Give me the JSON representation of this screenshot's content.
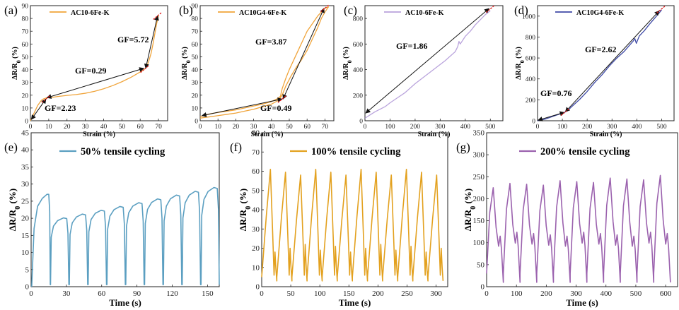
{
  "chart_data": [
    {
      "id": "a",
      "panel_label": "(a)",
      "type": "line",
      "color": "#f0a43a",
      "legend": "AC10-6Fe-K",
      "xlabel": "Strain (%)",
      "ylabel": "ΔR/R",
      "ylabel_sub": "0",
      "ylabel_unit": " (%)",
      "xlim": [
        0,
        75
      ],
      "ylim": [
        0,
        90
      ],
      "xticks": [
        0,
        10,
        20,
        30,
        40,
        50,
        60,
        70
      ],
      "yticks": [
        0,
        10,
        20,
        30,
        40,
        50,
        60,
        70,
        80,
        90
      ],
      "series": [
        {
          "name": "AC10-6Fe-K",
          "x": [
            0,
            1,
            2,
            3,
            4,
            5,
            6,
            7,
            8,
            9,
            10,
            12,
            15,
            20,
            25,
            30,
            35,
            40,
            45,
            50,
            55,
            58,
            61,
            63,
            64,
            65,
            66,
            67,
            68,
            69,
            70
          ],
          "y": [
            0,
            3,
            6,
            9,
            12,
            14,
            16,
            17,
            17.5,
            18,
            18,
            18.3,
            19,
            19.8,
            20.5,
            21.5,
            23,
            25,
            27.5,
            30.5,
            34,
            36.5,
            39,
            41,
            44,
            48,
            53,
            60,
            68,
            76,
            82
          ]
        }
      ],
      "annotations": [
        {
          "text": "GF=2.23",
          "x1": 0.5,
          "y1": 1,
          "x2": 8.5,
          "y2": 17
        },
        {
          "text": "GF=0.29",
          "x1": 9,
          "y1": 18,
          "x2": 62,
          "y2": 41
        },
        {
          "text": "GF=5.72",
          "x1": 63,
          "y1": 41,
          "x2": 69.5,
          "y2": 82
        }
      ],
      "markers": [
        [
          8.5,
          17
        ],
        [
          62.5,
          40.5
        ],
        [
          69.5,
          82
        ]
      ]
    },
    {
      "id": "b",
      "panel_label": "(b)",
      "type": "line",
      "color": "#f0a43a",
      "legend": "AC10G4-6Fe-K",
      "xlabel": "Strain (%)",
      "ylabel": "ΔR/R",
      "ylabel_sub": "0",
      "ylabel_unit": " (%)",
      "xlim": [
        0,
        75
      ],
      "ylim": [
        0,
        90
      ],
      "xticks": [
        0,
        10,
        20,
        30,
        40,
        50,
        60,
        70
      ],
      "yticks": [
        0,
        10,
        20,
        30,
        40,
        50,
        60,
        70,
        80,
        90
      ],
      "series": [
        {
          "name": "AC10G4-6Fe-K",
          "x": [
            0,
            3,
            6,
            10,
            15,
            20,
            25,
            30,
            35,
            40,
            43,
            45,
            46,
            48,
            50,
            52,
            54,
            56,
            58,
            60,
            62,
            64,
            66,
            68,
            70,
            72,
            70,
            68,
            66,
            64,
            62,
            60,
            57,
            54,
            51,
            48,
            46,
            44,
            40,
            35,
            30,
            25,
            20,
            15,
            10,
            5,
            2,
            0
          ],
          "y": [
            3,
            4.5,
            5.5,
            6.5,
            7.5,
            8.5,
            10,
            11.5,
            13,
            15,
            17,
            19,
            25,
            33,
            40,
            46,
            52,
            58,
            64,
            70,
            74,
            78,
            82,
            85,
            88,
            89,
            85,
            80,
            73,
            67,
            61,
            55,
            48,
            42,
            35,
            27,
            20,
            16,
            13,
            11,
            9,
            7.5,
            6,
            5,
            4,
            3,
            2.5,
            2
          ]
        }
      ],
      "annotations": [
        {
          "text": "GF=3.87",
          "x1": 46.5,
          "y1": 17,
          "x2": 69.5,
          "y2": 88
        },
        {
          "text": "GF=0.49",
          "x1": 1,
          "y1": 4,
          "x2": 46,
          "y2": 17
        }
      ],
      "markers": [
        [
          46,
          17
        ],
        [
          70,
          88
        ]
      ]
    },
    {
      "id": "c",
      "panel_label": "(c)",
      "type": "line",
      "color": "#b9a3dc",
      "legend": "AC10-6Fe-K",
      "xlabel": "Strain (%)",
      "ylabel": "ΔR/R",
      "ylabel_sub": "0",
      "ylabel_unit": " (%)",
      "xlim": [
        0,
        550
      ],
      "ylim": [
        0,
        900
      ],
      "xticks": [
        0,
        100,
        200,
        300,
        400,
        500
      ],
      "yticks": [
        0,
        200,
        400,
        600,
        800
      ],
      "series": [
        {
          "name": "AC10-6Fe-K",
          "x": [
            0,
            20,
            40,
            60,
            80,
            100,
            130,
            160,
            200,
            240,
            280,
            320,
            360,
            370,
            375,
            380,
            400,
            420,
            440,
            460,
            480,
            500
          ],
          "y": [
            20,
            45,
            70,
            90,
            110,
            140,
            180,
            220,
            290,
            350,
            410,
            470,
            540,
            580,
            620,
            600,
            660,
            700,
            750,
            790,
            830,
            860
          ]
        }
      ],
      "annotations": [
        {
          "text": "GF=1.86",
          "x1": 3,
          "y1": 60,
          "x2": 495,
          "y2": 878
        }
      ],
      "markers": [
        [
          500,
          875
        ]
      ]
    },
    {
      "id": "d",
      "panel_label": "(d)",
      "type": "line",
      "color": "#3f4aa6",
      "legend": "AC10G4-6Fe-K",
      "xlabel": "Strain (%)",
      "ylabel": "ΔR/R",
      "ylabel_sub": "0",
      "ylabel_unit": " (%)",
      "xlim": [
        0,
        550
      ],
      "ylim": [
        0,
        1100
      ],
      "xticks": [
        0,
        100,
        200,
        300,
        400,
        500
      ],
      "yticks": [
        0,
        200,
        400,
        600,
        800,
        1000
      ],
      "series": [
        {
          "name": "AC10G4-6Fe-K",
          "x": [
            0,
            30,
            60,
            90,
            110,
            120,
            140,
            170,
            200,
            230,
            260,
            290,
            320,
            350,
            370,
            385,
            392,
            398,
            410,
            430,
            450,
            470,
            490,
            500
          ],
          "y": [
            0,
            15,
            40,
            65,
            82,
            95,
            140,
            205,
            280,
            365,
            440,
            525,
            600,
            665,
            720,
            760,
            785,
            740,
            810,
            860,
            920,
            975,
            1030,
            1060
          ]
        }
      ],
      "annotations": [
        {
          "text": "GF=0.76",
          "x1": 2,
          "y1": 5,
          "x2": 108,
          "y2": 80
        },
        {
          "text": "GF=2.62",
          "x1": 112,
          "y1": 85,
          "x2": 490,
          "y2": 1050
        }
      ],
      "markers": [
        [
          112,
          85
        ],
        [
          498,
          1065
        ]
      ]
    },
    {
      "id": "e",
      "panel_label": "(e)",
      "type": "line",
      "color": "#5b9fc1",
      "legend": "50%  tensile cycling",
      "xlabel": "Time (s)",
      "ylabel": "ΔR/R",
      "ylabel_sub": "0",
      "ylabel_unit": " (%)",
      "xlim": [
        0,
        160
      ],
      "ylim": [
        0,
        45
      ],
      "xticks": [
        0,
        30,
        60,
        90,
        120,
        150
      ],
      "yticks": [
        0,
        5,
        10,
        15,
        20,
        25,
        30,
        35,
        40,
        45
      ],
      "cycle": {
        "count": 10,
        "period": 16,
        "start_peak": 19,
        "end_peak": 29,
        "valley": 0.5,
        "first_start": 0
      },
      "series": [
        {
          "name": "50%  tensile cycling",
          "x": [
            0,
            2,
            5,
            8,
            12,
            14,
            15,
            16
          ],
          "y": [
            0,
            18,
            24,
            26,
            27,
            27,
            20,
            0
          ]
        }
      ]
    },
    {
      "id": "f",
      "panel_label": "(f)",
      "type": "line",
      "color": "#e3a11f",
      "legend": "100%  tensile cycling",
      "xlabel": "Time (s)",
      "ylabel": "ΔR/R",
      "ylabel_sub": "0",
      "ylabel_unit": " (%)",
      "xlim": [
        0,
        320
      ],
      "ylim": [
        0,
        80
      ],
      "xticks": [
        0,
        50,
        100,
        150,
        200,
        250,
        300
      ],
      "yticks": [
        0,
        10,
        20,
        30,
        40,
        50,
        60,
        70,
        80
      ],
      "cycle": {
        "count": 12,
        "period": 26,
        "peak": 61,
        "mid_peak": 20,
        "valley": 3
      },
      "series": [
        {
          "name": "100%  tensile cycling",
          "x": [
            0,
            9,
            18,
            25,
            28,
            31,
            34
          ],
          "y": [
            5,
            33,
            59,
            22,
            6,
            18,
            3
          ]
        }
      ]
    },
    {
      "id": "g",
      "panel_label": "(g)",
      "type": "line",
      "color": "#9b62ae",
      "legend": "200%  tensile cycling",
      "xlabel": "Time (s)",
      "ylabel": "ΔR/R",
      "ylabel_sub": "0",
      "ylabel_unit": " (%)",
      "xlim": [
        0,
        640
      ],
      "ylim": [
        0,
        350
      ],
      "xticks": [
        0,
        100,
        200,
        300,
        400,
        500,
        600
      ],
      "yticks": [
        0,
        50,
        100,
        150,
        200,
        250,
        300,
        350
      ],
      "cycle": {
        "count": 11,
        "period": 56,
        "start_peak": 225,
        "end_peak": 245,
        "shoulder": 115,
        "valley": 10
      },
      "series": [
        {
          "name": "200%  tensile cycling",
          "x": [
            0,
            10,
            25,
            38,
            48,
            55,
            62,
            68
          ],
          "y": [
            5,
            160,
            225,
            130,
            85,
            110,
            80,
            12
          ]
        }
      ]
    }
  ]
}
